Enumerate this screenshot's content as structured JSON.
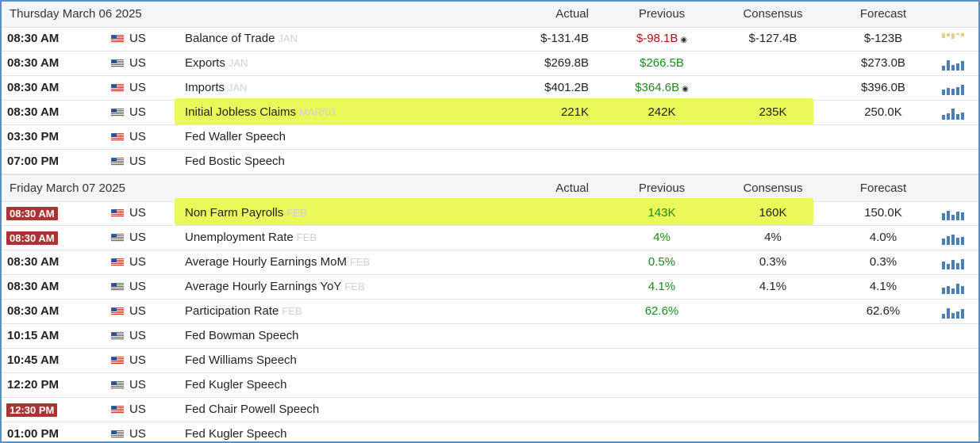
{
  "columns": {
    "actual": "Actual",
    "previous": "Previous",
    "consensus": "Consensus",
    "forecast": "Forecast"
  },
  "sections": [
    {
      "date": "Thursday March 06 2025",
      "rows": [
        {
          "time": "08:30 AM",
          "country": "US",
          "event": "Balance of Trade",
          "ref": "JAN",
          "actual": "$-131.4B",
          "previous": "$-98.1B",
          "previous_color": "red",
          "previous_revised": true,
          "consensus": "$-127.4B",
          "forecast": "$-123B",
          "spark": "tan"
        },
        {
          "time": "08:30 AM",
          "country": "US",
          "event": "Exports",
          "ref": "JAN",
          "actual": "$269.8B",
          "previous": "$266.5B",
          "previous_color": "green",
          "consensus": "",
          "forecast": "$273.0B",
          "spark": "blue"
        },
        {
          "time": "08:30 AM",
          "country": "US",
          "event": "Imports",
          "ref": "JAN",
          "actual": "$401.2B",
          "previous": "$364.6B",
          "previous_color": "green",
          "previous_revised": true,
          "consensus": "",
          "forecast": "$396.0B",
          "spark": "blue"
        },
        {
          "time": "08:30 AM",
          "country": "US",
          "event": "Initial Jobless Claims",
          "ref": "MAR/01",
          "actual": "221K",
          "previous": "242K",
          "previous_color": "default",
          "consensus": "235K",
          "forecast": "250.0K",
          "spark": "blue",
          "highlighted": true
        },
        {
          "time": "03:30 PM",
          "country": "US",
          "event": "Fed Waller Speech",
          "ref": "",
          "actual": "",
          "previous": "",
          "consensus": "",
          "forecast": ""
        },
        {
          "time": "07:00 PM",
          "country": "US",
          "event": "Fed Bostic Speech",
          "ref": "",
          "actual": "",
          "previous": "",
          "consensus": "",
          "forecast": ""
        }
      ]
    },
    {
      "date": "Friday March 07 2025",
      "rows": [
        {
          "time": "08:30 AM",
          "time_highlight": true,
          "country": "US",
          "event": "Non Farm Payrolls",
          "ref": "FEB",
          "actual": "",
          "previous": "143K",
          "previous_color": "green",
          "consensus": "160K",
          "forecast": "150.0K",
          "spark": "blue",
          "highlighted": true
        },
        {
          "time": "08:30 AM",
          "time_highlight": true,
          "country": "US",
          "event": "Unemployment Rate",
          "ref": "FEB",
          "actual": "",
          "previous": "4%",
          "previous_color": "green",
          "consensus": "4%",
          "forecast": "4.0%",
          "spark": "blue"
        },
        {
          "time": "08:30 AM",
          "country": "US",
          "event": "Average Hourly Earnings MoM",
          "ref": "FEB",
          "actual": "",
          "previous": "0.5%",
          "previous_color": "green",
          "consensus": "0.3%",
          "forecast": "0.3%",
          "spark": "blue"
        },
        {
          "time": "08:30 AM",
          "country": "US",
          "event": "Average Hourly Earnings YoY",
          "ref": "FEB",
          "actual": "",
          "previous": "4.1%",
          "previous_color": "green",
          "consensus": "4.1%",
          "forecast": "4.1%",
          "spark": "blue"
        },
        {
          "time": "08:30 AM",
          "country": "US",
          "event": "Participation Rate",
          "ref": "FEB",
          "actual": "",
          "previous": "62.6%",
          "previous_color": "green",
          "consensus": "",
          "forecast": "62.6%",
          "spark": "blue"
        },
        {
          "time": "10:15 AM",
          "country": "US",
          "event": "Fed Bowman Speech",
          "ref": "",
          "actual": "",
          "previous": "",
          "consensus": "",
          "forecast": ""
        },
        {
          "time": "10:45 AM",
          "country": "US",
          "event": "Fed Williams Speech",
          "ref": "",
          "actual": "",
          "previous": "",
          "consensus": "",
          "forecast": ""
        },
        {
          "time": "12:20 PM",
          "country": "US",
          "event": "Fed Kugler Speech",
          "ref": "",
          "actual": "",
          "previous": "",
          "consensus": "",
          "forecast": ""
        },
        {
          "time": "12:30 PM",
          "time_highlight": true,
          "country": "US",
          "event": "Fed Chair Powell Speech",
          "ref": "",
          "actual": "",
          "previous": "",
          "consensus": "",
          "forecast": ""
        },
        {
          "time": "01:00 PM",
          "country": "US",
          "event": "Fed Kugler Speech",
          "ref": "",
          "actual": "",
          "previous": "",
          "consensus": "",
          "forecast": ""
        }
      ]
    }
  ],
  "colors": {
    "green": "#1a8a1a",
    "red": "#b01010",
    "highlight": "#eaf85a",
    "time_badge": "#a33",
    "spark_blue": "#4a7fb5",
    "spark_tan": "#e8cc8a"
  },
  "icons": {
    "flag": "us-flag-icon",
    "revised": "revised-marker-icon",
    "spark": "sparkline-icon"
  }
}
